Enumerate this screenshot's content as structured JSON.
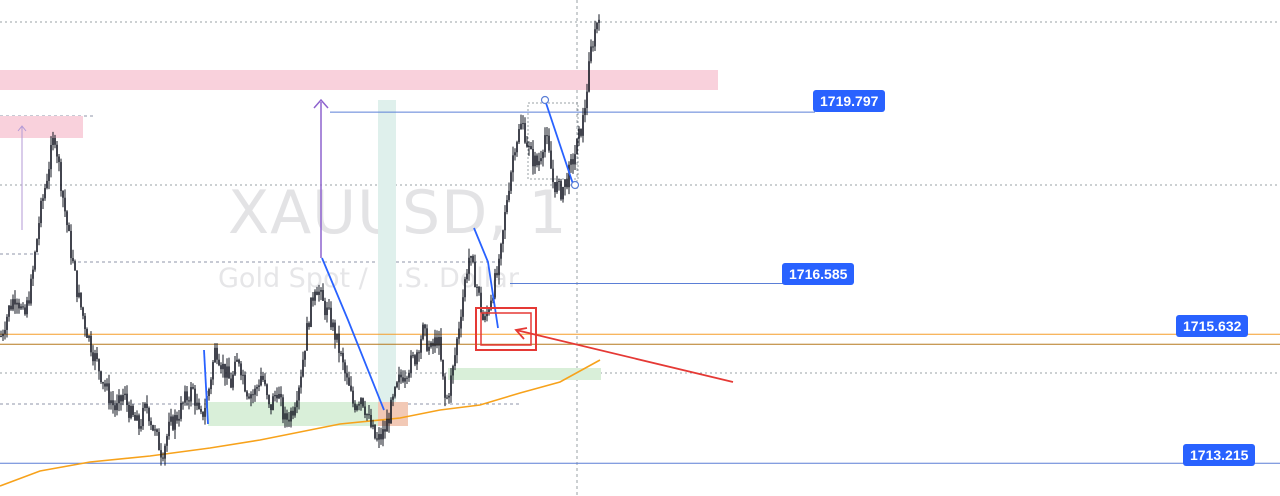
{
  "watermark": {
    "symbol": "XAUUSD, 1",
    "description": "Gold Spot / U.S. Dollar"
  },
  "price_labels": [
    {
      "value": "1719.797",
      "color": "#2962ff"
    },
    {
      "value": "1716.585",
      "color": "#2962ff"
    },
    {
      "value": "1715.632",
      "color": "#2962ff"
    },
    {
      "value": "1713.215",
      "color": "#2962ff"
    }
  ],
  "colors": {
    "candle": "#131722",
    "pattern_line": "#2962ff",
    "moving_average": "#f7a21b",
    "horizontal_line": "#f59d2a",
    "supply_zone": "#f9d1dc",
    "demand_zone": "#d9efd9",
    "highlight_box": "#e53935",
    "measure_arrow": "#8e63ce"
  },
  "chart_data": {
    "type": "candlestick",
    "symbol": "XAUUSD",
    "timeframe": "1",
    "ylim": [
      1712.6,
      1721.9
    ],
    "key_levels": [
      1719.797,
      1716.585,
      1715.632,
      1713.215
    ],
    "close_path": [
      1715.6,
      1716.1,
      1716.4,
      1715.9,
      1716.6,
      1717.8,
      1718.6,
      1719.4,
      1718.3,
      1717.3,
      1716.4,
      1715.8,
      1715.3,
      1714.9,
      1714.5,
      1714.2,
      1714.5,
      1714.1,
      1713.9,
      1714.3,
      1713.8,
      1713.4,
      1713.9,
      1714.1,
      1714.4,
      1714.6,
      1714.0,
      1714.5,
      1715.4,
      1715.0,
      1714.7,
      1715.2,
      1714.6,
      1714.5,
      1714.9,
      1714.2,
      1714.6,
      1714.0,
      1714.2,
      1714.8,
      1715.8,
      1716.6,
      1716.2,
      1715.9,
      1715.4,
      1714.8,
      1714.3,
      1714.5,
      1714.0,
      1713.6,
      1713.8,
      1714.3,
      1714.8,
      1715.0,
      1715.2,
      1715.7,
      1715.3,
      1715.6,
      1714.3,
      1715.0,
      1716.1,
      1717.1,
      1716.6,
      1715.8,
      1716.4,
      1716.9,
      1718.2,
      1719.2,
      1719.6,
      1719.0,
      1718.8,
      1719.4,
      1718.5,
      1718.3,
      1718.6,
      1719.1,
      1719.7,
      1721.0,
      1721.7
    ]
  }
}
